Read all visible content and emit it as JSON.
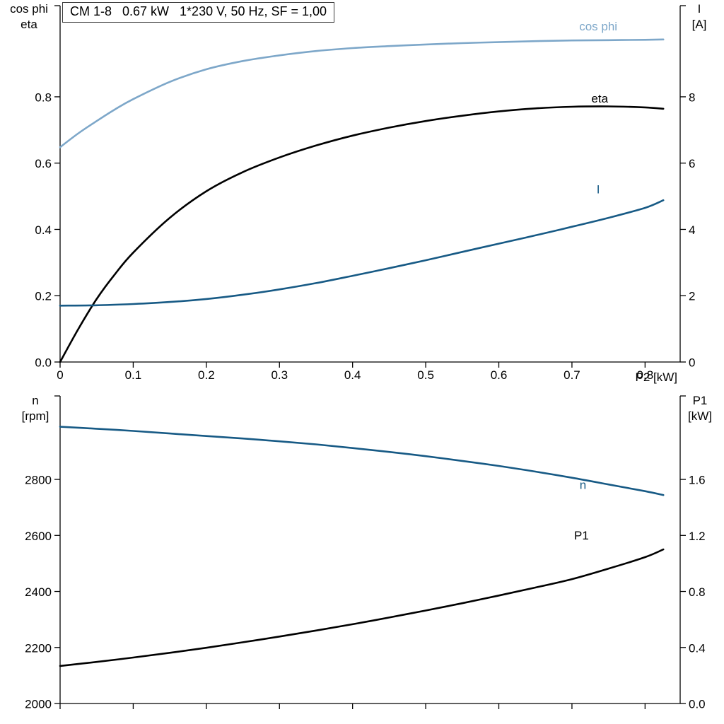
{
  "title_box": "CM 1-8   0.67 kW   1*230 V, 50 Hz, SF = 1,00",
  "colors": {
    "light_blue": "#7da7c9",
    "dark_blue": "#175a85",
    "black": "#000000",
    "axis": "#000000"
  },
  "chart_data": [
    {
      "type": "line",
      "title": "CM 1-8   0.67 kW   1*230 V, 50 Hz, SF = 1,00",
      "x_axis": {
        "label": "P2 [kW]",
        "range": [
          0,
          0.848
        ],
        "ticks": [
          0,
          0.1,
          0.2,
          0.3,
          0.4,
          0.5,
          0.6,
          0.7,
          0.8
        ],
        "tick_labels": [
          "0",
          "0.1",
          "0.2",
          "0.3",
          "0.4",
          "0.5",
          "0.6",
          "0.7",
          "0.8"
        ]
      },
      "left_axis": {
        "title_lines": [
          "cos phi",
          "eta"
        ],
        "range": [
          0,
          1.075
        ],
        "ticks": [
          0,
          0.2,
          0.4,
          0.6,
          0.8
        ],
        "tick_labels": [
          "0.0",
          "0.2",
          "0.4",
          "0.6",
          "0.8"
        ]
      },
      "right_axis": {
        "title_lines": [
          "I",
          "[A]"
        ],
        "range": [
          0,
          10.75
        ],
        "ticks": [
          0,
          2,
          4,
          6,
          8
        ],
        "tick_labels": [
          "0",
          "2",
          "4",
          "6",
          "8"
        ]
      },
      "grid": false,
      "series": [
        {
          "name": "cos phi",
          "axis": "left",
          "color": "#7da7c9",
          "label": {
            "text": "cos phi",
            "x": 0.736,
            "y": 1.012
          },
          "x": [
            0,
            0.025,
            0.05,
            0.075,
            0.1,
            0.15,
            0.2,
            0.25,
            0.3,
            0.35,
            0.4,
            0.45,
            0.5,
            0.55,
            0.6,
            0.65,
            0.7,
            0.75,
            0.8,
            0.825
          ],
          "y": [
            0.648,
            0.69,
            0.727,
            0.762,
            0.793,
            0.845,
            0.883,
            0.908,
            0.925,
            0.938,
            0.947,
            0.953,
            0.958,
            0.962,
            0.965,
            0.968,
            0.97,
            0.971,
            0.972,
            0.973
          ]
        },
        {
          "name": "eta",
          "axis": "left",
          "color": "#000000",
          "label": {
            "text": "eta",
            "x": 0.738,
            "y": 0.795
          },
          "x": [
            0,
            0.025,
            0.05,
            0.075,
            0.1,
            0.15,
            0.2,
            0.25,
            0.3,
            0.35,
            0.4,
            0.45,
            0.5,
            0.55,
            0.6,
            0.65,
            0.7,
            0.75,
            0.8,
            0.825
          ],
          "y": [
            0,
            0.1,
            0.19,
            0.265,
            0.33,
            0.435,
            0.515,
            0.573,
            0.617,
            0.653,
            0.683,
            0.707,
            0.727,
            0.743,
            0.756,
            0.765,
            0.77,
            0.771,
            0.768,
            0.764
          ]
        },
        {
          "name": "I",
          "axis": "right",
          "color": "#175a85",
          "label": {
            "text": "I",
            "x": 0.736,
            "y": 5.2
          },
          "x": [
            0,
            0.05,
            0.1,
            0.15,
            0.2,
            0.25,
            0.3,
            0.35,
            0.4,
            0.45,
            0.5,
            0.55,
            0.6,
            0.65,
            0.7,
            0.75,
            0.8,
            0.825
          ],
          "y": [
            1.7,
            1.71,
            1.75,
            1.81,
            1.9,
            2.03,
            2.19,
            2.38,
            2.6,
            2.83,
            3.07,
            3.32,
            3.57,
            3.82,
            4.08,
            4.35,
            4.65,
            4.88
          ]
        }
      ]
    },
    {
      "type": "line",
      "title": "",
      "x_axis": {
        "label": "",
        "range": [
          0,
          0.848
        ],
        "ticks": [
          0,
          0.1,
          0.2,
          0.3,
          0.4,
          0.5,
          0.6,
          0.7,
          0.8
        ],
        "tick_labels": [
          "",
          "",
          "",
          "",
          "",
          "",
          "",
          "",
          ""
        ]
      },
      "left_axis": {
        "title_lines": [
          "n",
          "[rpm]"
        ],
        "range": [
          2000,
          3098
        ],
        "ticks": [
          2000,
          2200,
          2400,
          2600,
          2800
        ],
        "tick_labels": [
          "2000",
          "2200",
          "2400",
          "2600",
          "2800"
        ]
      },
      "right_axis": {
        "title_lines": [
          "P1",
          "[kW]"
        ],
        "range": [
          0,
          2.196
        ],
        "ticks": [
          0,
          0.4,
          0.8,
          1.2,
          1.6
        ],
        "tick_labels": [
          "0.0",
          "0.4",
          "0.8",
          "1.2",
          "1.6"
        ]
      },
      "grid": false,
      "series": [
        {
          "name": "n",
          "axis": "left",
          "color": "#175a85",
          "label": {
            "text": "n",
            "x": 0.715,
            "y": 2780
          },
          "x": [
            0,
            0.05,
            0.1,
            0.15,
            0.2,
            0.25,
            0.3,
            0.35,
            0.4,
            0.45,
            0.5,
            0.55,
            0.6,
            0.65,
            0.7,
            0.75,
            0.8,
            0.825
          ],
          "y": [
            2988,
            2981,
            2973,
            2964,
            2955,
            2946,
            2936,
            2925,
            2912,
            2898,
            2883,
            2866,
            2848,
            2828,
            2806,
            2782,
            2758,
            2744
          ]
        },
        {
          "name": "P1",
          "axis": "right",
          "color": "#000000",
          "label": {
            "text": "P1",
            "x": 0.713,
            "y": 1.2
          },
          "x": [
            0,
            0.05,
            0.1,
            0.15,
            0.2,
            0.25,
            0.3,
            0.35,
            0.4,
            0.45,
            0.5,
            0.55,
            0.6,
            0.65,
            0.7,
            0.75,
            0.8,
            0.825
          ],
          "y": [
            0.268,
            0.297,
            0.328,
            0.362,
            0.398,
            0.437,
            0.478,
            0.521,
            0.566,
            0.614,
            0.664,
            0.716,
            0.771,
            0.828,
            0.888,
            0.963,
            1.045,
            1.1
          ]
        }
      ]
    }
  ]
}
